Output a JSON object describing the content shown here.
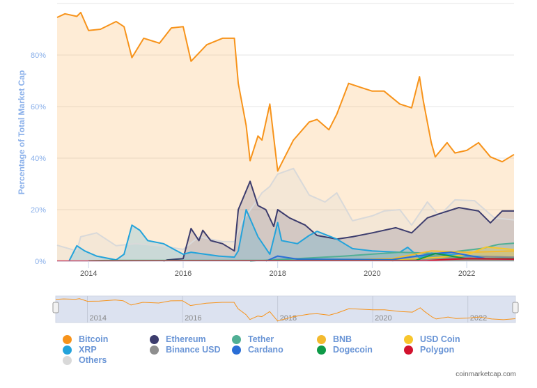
{
  "chart_data": {
    "type": "area",
    "ylabel": "Percentage of Total Market Cap",
    "ylim": [
      0,
      100
    ],
    "yticks": [
      "0%",
      "20%",
      "40%",
      "60%",
      "80%"
    ],
    "xlim": [
      "2013-05",
      "2023-01"
    ],
    "xticks": [
      "2014",
      "2016",
      "2018",
      "2020",
      "2022"
    ],
    "grid": true,
    "legend_position": "bottom",
    "series": [
      {
        "name": "Bitcoin",
        "color": "#F7931A",
        "points": [
          [
            "2013-05",
            94.6
          ],
          [
            "2013-07",
            96
          ],
          [
            "2013-10",
            95
          ],
          [
            "2013-11",
            96.5
          ],
          [
            "2014-01",
            89.5
          ],
          [
            "2014-04",
            90
          ],
          [
            "2014-08",
            93
          ],
          [
            "2014-10",
            91
          ],
          [
            "2014-12",
            79
          ],
          [
            "2015-03",
            86.5
          ],
          [
            "2015-07",
            84.6
          ],
          [
            "2015-10",
            90.5
          ],
          [
            "2016-01",
            91
          ],
          [
            "2016-03",
            77.6
          ],
          [
            "2016-07",
            84
          ],
          [
            "2016-11",
            86.5
          ],
          [
            "2017-02",
            86.5
          ],
          [
            "2017-03",
            69
          ],
          [
            "2017-05",
            52.7
          ],
          [
            "2017-06",
            39
          ],
          [
            "2017-08",
            48.6
          ],
          [
            "2017-09",
            47
          ],
          [
            "2017-11",
            61
          ],
          [
            "2018-01",
            35
          ],
          [
            "2018-02",
            38
          ],
          [
            "2018-05",
            47
          ],
          [
            "2018-09",
            54
          ],
          [
            "2018-11",
            55
          ],
          [
            "2019-02",
            51
          ],
          [
            "2019-04",
            57
          ],
          [
            "2019-07",
            69
          ],
          [
            "2019-10",
            67.5
          ],
          [
            "2020-01",
            66
          ],
          [
            "2020-04",
            66
          ],
          [
            "2020-08",
            61
          ],
          [
            "2020-11",
            59.5
          ],
          [
            "2021-01",
            71.6
          ],
          [
            "2021-02",
            62
          ],
          [
            "2021-04",
            46
          ],
          [
            "2021-05",
            40.5
          ],
          [
            "2021-08",
            46
          ],
          [
            "2021-10",
            42
          ],
          [
            "2022-01",
            43
          ],
          [
            "2022-04",
            46
          ],
          [
            "2022-07",
            40.5
          ],
          [
            "2022-10",
            38.6
          ],
          [
            "2023-01",
            41.4
          ]
        ]
      },
      {
        "name": "Others",
        "color": "#D9D9D9",
        "points": [
          [
            "2013-05",
            6.2
          ],
          [
            "2013-10",
            4
          ],
          [
            "2013-11",
            9.5
          ],
          [
            "2014-03",
            11
          ],
          [
            "2014-08",
            6
          ],
          [
            "2015-01",
            6.8
          ],
          [
            "2015-07",
            6
          ],
          [
            "2016-01",
            4.6
          ],
          [
            "2016-05",
            9.5
          ],
          [
            "2016-11",
            7.6
          ],
          [
            "2017-02",
            7.6
          ],
          [
            "2017-04",
            15.7
          ],
          [
            "2017-07",
            22
          ],
          [
            "2017-09",
            26.5
          ],
          [
            "2017-11",
            29
          ],
          [
            "2018-01",
            33.8
          ],
          [
            "2018-05",
            36
          ],
          [
            "2018-09",
            25.7
          ],
          [
            "2019-01",
            23
          ],
          [
            "2019-04",
            26.5
          ],
          [
            "2019-08",
            15.7
          ],
          [
            "2020-01",
            17.6
          ],
          [
            "2020-04",
            19.5
          ],
          [
            "2020-08",
            20
          ],
          [
            "2020-11",
            14
          ],
          [
            "2021-03",
            23
          ],
          [
            "2021-06",
            17.6
          ],
          [
            "2021-10",
            23.8
          ],
          [
            "2022-03",
            23.5
          ],
          [
            "2022-08",
            16.8
          ],
          [
            "2023-01",
            16
          ]
        ]
      },
      {
        "name": "Ethereum",
        "color": "#3C3C6D",
        "points": [
          [
            "2015-08",
            0
          ],
          [
            "2015-09",
            0.5
          ],
          [
            "2016-01",
            1
          ],
          [
            "2016-03",
            12.7
          ],
          [
            "2016-05",
            8
          ],
          [
            "2016-06",
            12
          ],
          [
            "2016-08",
            8
          ],
          [
            "2016-11",
            6.8
          ],
          [
            "2017-02",
            4
          ],
          [
            "2017-03",
            20
          ],
          [
            "2017-06",
            31
          ],
          [
            "2017-08",
            21.6
          ],
          [
            "2017-10",
            20
          ],
          [
            "2017-12",
            13.5
          ],
          [
            "2018-01",
            20
          ],
          [
            "2018-04",
            16.8
          ],
          [
            "2018-08",
            14
          ],
          [
            "2018-11",
            10
          ],
          [
            "2019-04",
            8.6
          ],
          [
            "2019-08",
            9.5
          ],
          [
            "2020-01",
            11
          ],
          [
            "2020-07",
            13
          ],
          [
            "2020-11",
            11
          ],
          [
            "2021-03",
            16.8
          ],
          [
            "2021-06",
            18.4
          ],
          [
            "2021-11",
            20.8
          ],
          [
            "2022-04",
            19.5
          ],
          [
            "2022-07",
            14.9
          ],
          [
            "2022-10",
            19.5
          ],
          [
            "2023-01",
            19.5
          ]
        ]
      },
      {
        "name": "XRP",
        "color": "#23A3DB",
        "points": [
          [
            "2013-08",
            0
          ],
          [
            "2013-10",
            6
          ],
          [
            "2013-12",
            4
          ],
          [
            "2014-03",
            2
          ],
          [
            "2014-08",
            0.5
          ],
          [
            "2014-10",
            2.7
          ],
          [
            "2014-12",
            14
          ],
          [
            "2015-02",
            12
          ],
          [
            "2015-04",
            8
          ],
          [
            "2015-08",
            6.8
          ],
          [
            "2016-01",
            2.7
          ],
          [
            "2016-03",
            3.5
          ],
          [
            "2016-10",
            2
          ],
          [
            "2017-02",
            1.6
          ],
          [
            "2017-03",
            4
          ],
          [
            "2017-05",
            20
          ],
          [
            "2017-08",
            9.5
          ],
          [
            "2017-11",
            2.7
          ],
          [
            "2018-01",
            15
          ],
          [
            "2018-02",
            8
          ],
          [
            "2018-06",
            6.8
          ],
          [
            "2018-09",
            10
          ],
          [
            "2018-11",
            11.6
          ],
          [
            "2019-04",
            8.6
          ],
          [
            "2019-08",
            4.9
          ],
          [
            "2020-01",
            4
          ],
          [
            "2020-08",
            3.5
          ],
          [
            "2020-10",
            5.4
          ],
          [
            "2021-01",
            1.4
          ],
          [
            "2021-04",
            3.2
          ],
          [
            "2022-01",
            2
          ],
          [
            "2023-01",
            1.5
          ]
        ]
      },
      {
        "name": "Tether",
        "color": "#50AF95",
        "points": [
          [
            "2017-06",
            0
          ],
          [
            "2018-06",
            1
          ],
          [
            "2019-06",
            2
          ],
          [
            "2020-08",
            3.5
          ],
          [
            "2021-06",
            3
          ],
          [
            "2022-05",
            5
          ],
          [
            "2022-09",
            6.5
          ],
          [
            "2023-01",
            7
          ]
        ]
      },
      {
        "name": "BNB",
        "color": "#F3BA2F",
        "points": [
          [
            "2019-01",
            0.3
          ],
          [
            "2020-06",
            1
          ],
          [
            "2021-04",
            4
          ],
          [
            "2022-01",
            3.5
          ],
          [
            "2022-07",
            3.7
          ],
          [
            "2023-01",
            4
          ]
        ]
      },
      {
        "name": "USD Coin",
        "color": "#F8C62C",
        "points": [
          [
            "2020-06",
            0.3
          ],
          [
            "2021-06",
            1.5
          ],
          [
            "2022-01",
            2.5
          ],
          [
            "2022-06",
            5.5
          ],
          [
            "2023-01",
            4.5
          ]
        ]
      },
      {
        "name": "Binance USD",
        "color": "#8E8E8E",
        "points": [
          [
            "2020-06",
            0.1
          ],
          [
            "2021-06",
            0.8
          ],
          [
            "2022-06",
            1.8
          ],
          [
            "2023-01",
            1.6
          ]
        ]
      },
      {
        "name": "Cardano",
        "color": "#2A6ED6",
        "points": [
          [
            "2017-10",
            0
          ],
          [
            "2018-01",
            2
          ],
          [
            "2018-06",
            0.8
          ],
          [
            "2020-06",
            0.6
          ],
          [
            "2021-05",
            3
          ],
          [
            "2021-09",
            3.5
          ],
          [
            "2022-06",
            1
          ],
          [
            "2023-01",
            0.8
          ]
        ]
      },
      {
        "name": "Dogecoin",
        "color": "#0E9A48",
        "points": [
          [
            "2014-01",
            0.2
          ],
          [
            "2014-06",
            0.3
          ],
          [
            "2020-12",
            0.3
          ],
          [
            "2021-05",
            3
          ],
          [
            "2022-01",
            1
          ],
          [
            "2023-01",
            1
          ]
        ]
      },
      {
        "name": "Polygon",
        "color": "#D2122E",
        "points": [
          [
            "2013-05",
            0.1
          ],
          [
            "2021-03",
            0.2
          ],
          [
            "2021-06",
            0.5
          ],
          [
            "2022-01",
            1
          ],
          [
            "2023-01",
            0.8
          ]
        ]
      }
    ]
  },
  "navigator": {
    "xticks": [
      "2014",
      "2016",
      "2018",
      "2020",
      "2022"
    ]
  },
  "legend": [
    {
      "name": "Bitcoin",
      "color": "#F7931A"
    },
    {
      "name": "Ethereum",
      "color": "#3C3C6D"
    },
    {
      "name": "Tether",
      "color": "#50AF95"
    },
    {
      "name": "BNB",
      "color": "#F3BA2F"
    },
    {
      "name": "USD Coin",
      "color": "#F8C62C"
    },
    {
      "name": "XRP",
      "color": "#23A3DB"
    },
    {
      "name": "Binance USD",
      "color": "#8E8E8E"
    },
    {
      "name": "Cardano",
      "color": "#2A6ED6"
    },
    {
      "name": "Dogecoin",
      "color": "#0E9A48"
    },
    {
      "name": "Polygon",
      "color": "#D2122E"
    },
    {
      "name": "Others",
      "color": "#D9D9D9"
    }
  ],
  "credit": "coinmarketcap.com"
}
